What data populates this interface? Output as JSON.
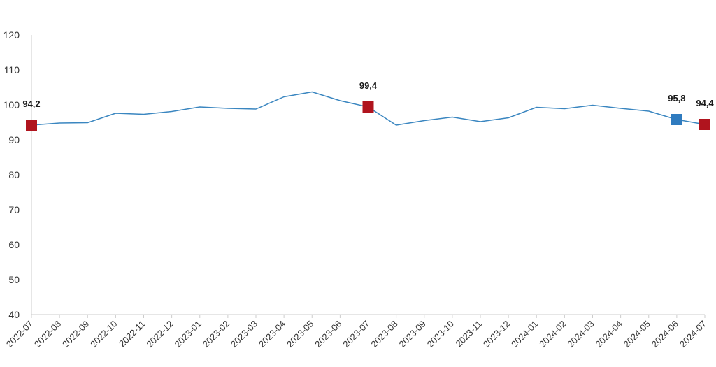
{
  "chart_data": {
    "type": "line",
    "title": "",
    "xlabel": "",
    "ylabel": "",
    "ylim": [
      40,
      120
    ],
    "yticks": [
      40,
      50,
      60,
      70,
      80,
      90,
      100,
      110,
      120
    ],
    "grid": false,
    "legend": "none",
    "categories": [
      "2022-07",
      "2022-08",
      "2022-09",
      "2022-10",
      "2022-11",
      "2022-12",
      "2023-01",
      "2023-02",
      "2023-03",
      "2023-04",
      "2023-05",
      "2023-06",
      "2023-07",
      "2023-08",
      "2023-09",
      "2023-10",
      "2023-11",
      "2023-12",
      "2024-01",
      "2024-02",
      "2024-03",
      "2024-04",
      "2024-05",
      "2024-06",
      "2024-07"
    ],
    "series": [
      {
        "color": "#3a86c0",
        "values": [
          94.2,
          94.8,
          94.9,
          97.6,
          97.3,
          98.1,
          99.4,
          99.0,
          98.8,
          102.3,
          103.7,
          101.2,
          99.4,
          94.2,
          95.5,
          96.5,
          95.2,
          96.3,
          99.3,
          98.9,
          99.9,
          99.0,
          98.2,
          95.8,
          94.4
        ]
      }
    ],
    "highlights": [
      {
        "index": 0,
        "label": "94,2",
        "color": "#b0141e"
      },
      {
        "index": 12,
        "label": "99,4",
        "color": "#b0141e"
      },
      {
        "index": 23,
        "label": "95,8",
        "color": "#2f7bbf"
      },
      {
        "index": 24,
        "label": "94,4",
        "color": "#b0141e"
      }
    ],
    "colors": {
      "axis": "#cccccc",
      "tick_text": "#333333",
      "label_text": "#1a1a1a"
    }
  }
}
